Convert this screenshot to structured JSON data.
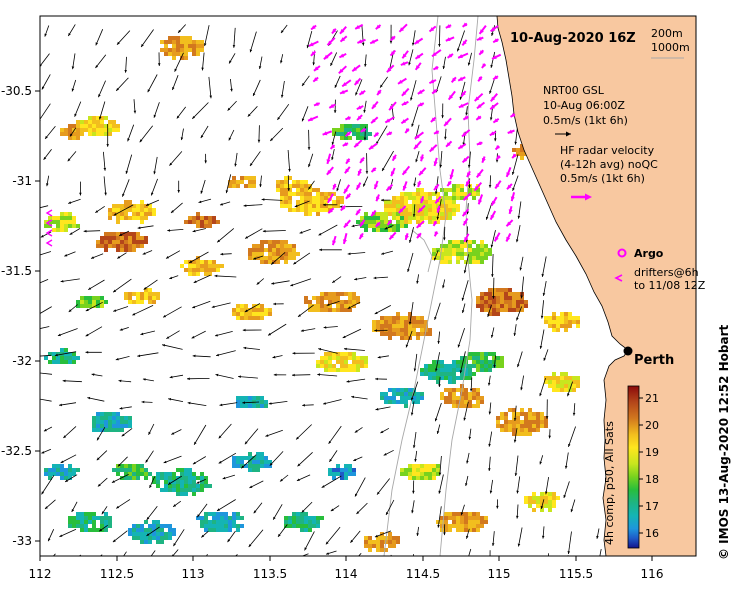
{
  "map_title": "10-Aug-2020 16Z",
  "isobaths": [
    "200m",
    "1000m"
  ],
  "gsl": {
    "line1": "NRT00 GSL",
    "line2": "10-Aug 06:00Z",
    "scale": "0.5m/s (1kt 6h)"
  },
  "radar": {
    "line1": "HF radar velocity",
    "line2": "(4-12h avg) noQC",
    "scale": "0.5m/s (1kt 6h)"
  },
  "legend": {
    "argo": "Argo",
    "drifters1": "drifters@6h",
    "drifters2": "to 11/08 12Z"
  },
  "place_label": "Perth",
  "colorbar": {
    "label": "4h comp, p50, All Sats",
    "ticks": [
      "21",
      "20",
      "19",
      "18",
      "17",
      "16"
    ],
    "colors": [
      "#8b0a0a",
      "#b4461a",
      "#d2781e",
      "#e69b1e",
      "#f2be1e",
      "#ffe61e",
      "#c8e61e",
      "#78d21e",
      "#28be3c",
      "#1eb482",
      "#14b4b4",
      "#1e96dc",
      "#1e5ac8",
      "#14148c"
    ]
  },
  "credit": "© IMOS 13-Aug-2020 12:52 Hobart",
  "x_ticks": [
    "112",
    "112.5",
    "113",
    "113.5",
    "114",
    "114.5",
    "115",
    "115.5",
    "116"
  ],
  "y_ticks": [
    "-30.5",
    "-31",
    "-31.5",
    "-32",
    "-32.5",
    "-33"
  ],
  "colors": {
    "land": "#f8c8a0",
    "magenta": "#ff00ff",
    "isobath": "#a8a8a8"
  }
}
